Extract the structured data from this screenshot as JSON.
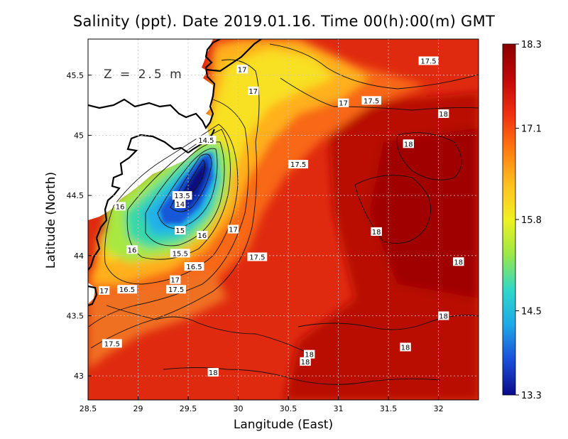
{
  "title": "Salinity (ppt). Date 2019.01.16. Time 00(h):00(m) GMT",
  "depth_label": "Z = 2.5 m",
  "xlabel": "Langitude (East)",
  "ylabel": "Latitude (North)",
  "x_ticks": [
    "28.5",
    "29",
    "29.5",
    "30",
    "30.5",
    "31",
    "31.5",
    "32"
  ],
  "y_ticks": [
    "43",
    "43.5",
    "44",
    "44.5",
    "45",
    "45.5"
  ],
  "x_range": [
    28.5,
    32.4
  ],
  "y_range": [
    42.8,
    45.8
  ],
  "colorbar": {
    "min": 13.3,
    "max": 18.3,
    "tick_labels": [
      "18.3",
      "17.1",
      "15.8",
      "14.5",
      "13.3"
    ],
    "tick_values": [
      18.3,
      17.1,
      15.8,
      14.5,
      13.3
    ],
    "colors": [
      "#0a0a8c",
      "#1a4fd8",
      "#1fa8e8",
      "#30d8c8",
      "#9ae848",
      "#f0f020",
      "#ffc020",
      "#ff7a10",
      "#f03010",
      "#c00808",
      "#8a0000"
    ]
  },
  "contour_labels": [
    {
      "text": "17.5",
      "lon": 31.9,
      "lat": 45.62
    },
    {
      "text": "17",
      "lon": 30.04,
      "lat": 45.55
    },
    {
      "text": "17",
      "lon": 30.15,
      "lat": 45.37
    },
    {
      "text": "17",
      "lon": 31.05,
      "lat": 45.27
    },
    {
      "text": "17.5",
      "lon": 31.33,
      "lat": 45.29
    },
    {
      "text": "18",
      "lon": 32.05,
      "lat": 45.18
    },
    {
      "text": "14.5",
      "lon": 29.68,
      "lat": 44.96
    },
    {
      "text": "18",
      "lon": 31.7,
      "lat": 44.93
    },
    {
      "text": "17.5",
      "lon": 30.6,
      "lat": 44.76
    },
    {
      "text": "13.5",
      "lon": 29.44,
      "lat": 44.5
    },
    {
      "text": "14",
      "lon": 29.42,
      "lat": 44.43
    },
    {
      "text": "16",
      "lon": 28.82,
      "lat": 44.41
    },
    {
      "text": "17",
      "lon": 29.95,
      "lat": 44.22
    },
    {
      "text": "15",
      "lon": 29.42,
      "lat": 44.21
    },
    {
      "text": "16",
      "lon": 29.64,
      "lat": 44.17
    },
    {
      "text": "18",
      "lon": 31.38,
      "lat": 44.2
    },
    {
      "text": "16",
      "lon": 28.94,
      "lat": 44.05
    },
    {
      "text": "15.5",
      "lon": 29.42,
      "lat": 44.02
    },
    {
      "text": "17.5",
      "lon": 30.19,
      "lat": 43.99
    },
    {
      "text": "18",
      "lon": 32.2,
      "lat": 43.95
    },
    {
      "text": "16.5",
      "lon": 29.56,
      "lat": 43.91
    },
    {
      "text": "17",
      "lon": 29.37,
      "lat": 43.8
    },
    {
      "text": "17",
      "lon": 28.66,
      "lat": 43.71
    },
    {
      "text": "16.5",
      "lon": 28.89,
      "lat": 43.72
    },
    {
      "text": "17.5",
      "lon": 29.38,
      "lat": 43.72
    },
    {
      "text": "18",
      "lon": 32.05,
      "lat": 43.5
    },
    {
      "text": "17.5",
      "lon": 28.74,
      "lat": 43.27
    },
    {
      "text": "18",
      "lon": 31.67,
      "lat": 43.24
    },
    {
      "text": "18",
      "lon": 30.71,
      "lat": 43.18
    },
    {
      "text": "18",
      "lon": 30.67,
      "lat": 43.12
    },
    {
      "text": "18",
      "lon": 29.75,
      "lat": 43.03
    }
  ]
}
